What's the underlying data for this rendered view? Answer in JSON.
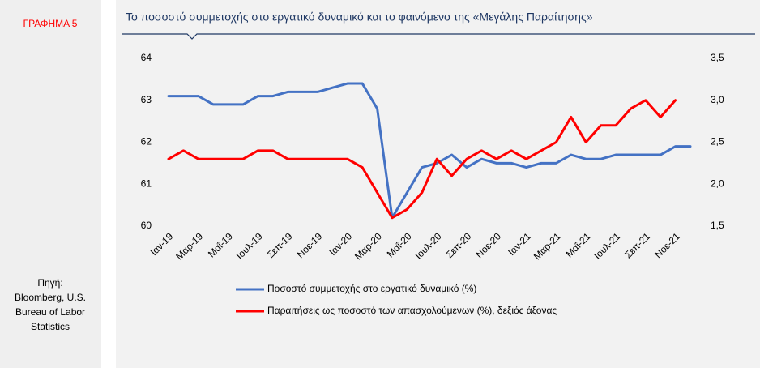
{
  "figure_label": "ΓΡΑΦΗΜΑ 5",
  "source": [
    "Πηγή:",
    "Bloomberg, U.S.",
    "Bureau of Labor",
    "Statistics"
  ],
  "chart_data": {
    "type": "line",
    "title": "Το ποσοστό συμμετοχής στο εργατικό δυναμικό και το φαινόμενο της «Μεγάλης Παραίτησης»",
    "categories": [
      "Ιαν-19",
      null,
      "Μαρ-19",
      null,
      "Μαΐ-19",
      null,
      "Ιουλ-19",
      null,
      "Σεπ-19",
      null,
      "Νοε-19",
      null,
      "Ιαν-20",
      null,
      "Μαρ-20",
      null,
      "Μαΐ-20",
      null,
      "Ιουλ-20",
      null,
      "Σεπ-20",
      null,
      "Νοε-20",
      null,
      "Ιαν-21",
      null,
      "Μαρ-21",
      null,
      "Μαΐ-21",
      null,
      "Ιουλ-21",
      null,
      "Σεπ-21",
      null,
      "Νοε-21",
      null
    ],
    "series": [
      {
        "name": "Ποσοστό συμμετοχής στο εργατικό δυναμικό (%)",
        "color": "#4472c4",
        "values": [
          63.1,
          63.1,
          63.1,
          62.9,
          62.9,
          62.9,
          63.1,
          63.1,
          63.2,
          63.2,
          63.2,
          63.3,
          63.4,
          63.4,
          62.8,
          60.2,
          60.8,
          61.4,
          61.5,
          61.7,
          61.4,
          61.6,
          61.5,
          61.5,
          61.4,
          61.5,
          61.5,
          61.7,
          61.6,
          61.6,
          61.7,
          61.7,
          61.7,
          61.7,
          61.9,
          61.9
        ]
      },
      {
        "name": "Παραιτήσεις ως ποσοστό των απασχολούμενων (%), δεξιός άξονας",
        "color": "#ff0000",
        "axis": "y2",
        "values": [
          2.3,
          2.4,
          2.3,
          2.3,
          2.3,
          2.3,
          2.4,
          2.4,
          2.3,
          2.3,
          2.3,
          2.3,
          2.3,
          2.2,
          1.9,
          1.6,
          1.7,
          1.9,
          2.3,
          2.1,
          2.3,
          2.4,
          2.3,
          2.4,
          2.3,
          2.4,
          2.5,
          2.8,
          2.5,
          2.7,
          2.7,
          2.9,
          3.0,
          2.8,
          3.0,
          null
        ]
      }
    ],
    "ylim": [
      60,
      64
    ],
    "yticks": [
      60,
      61,
      62,
      63,
      64
    ],
    "y2lim": [
      1.5,
      3.5
    ],
    "y2ticks": [
      {
        "value": 1.5,
        "label": "1,5"
      },
      {
        "value": 2,
        "label": "2,0"
      },
      {
        "value": 2.5,
        "label": "2,5"
      },
      {
        "value": 3,
        "label": "3,0"
      },
      {
        "value": 3.5,
        "label": "3,5"
      }
    ],
    "grid": false
  }
}
